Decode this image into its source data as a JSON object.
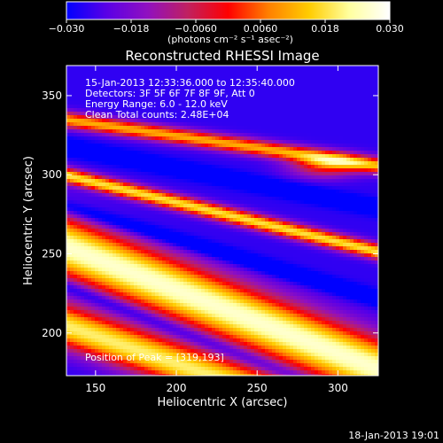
{
  "chart_data": {
    "type": "heatmap",
    "title": "Reconstructed RHESSI Image",
    "xlabel": "Heliocentric X (arcsec)",
    "ylabel": "Heliocentric Y (arcsec)",
    "xlim": [
      132,
      325
    ],
    "ylim": [
      173,
      369
    ],
    "xticks": [
      150,
      200,
      250,
      300
    ],
    "yticks": [
      200,
      250,
      300,
      350
    ],
    "colorbar": {
      "range": [
        -0.03,
        0.03
      ],
      "ticks": [
        "-0.030",
        "-0.018",
        "-0.0060",
        "0.0060",
        "0.018",
        "0.030"
      ],
      "unit_label": "(photons cm⁻² s⁻¹ asec⁻²)",
      "colors": [
        "#0000ff",
        "#5a00e6",
        "#9010c0",
        "#c02060",
        "#ff0000",
        "#ff8000",
        "#ffcc00",
        "#ffffa0",
        "#ffffff"
      ]
    },
    "annotations": [
      "15-Jan-2013 12:33:36.000 to 12:35:40.000",
      "Detectors: 3F 5F 6F 7F 8F 9F, Att 0",
      "Energy Range: 6.0 - 12.0 keV",
      "Clean     Total counts: 2.48E+04"
    ],
    "peak_label": "Position of Peak = [319,193]",
    "peak": [
      319,
      193
    ],
    "bands": [
      {
        "value": 0.026,
        "center_y_at_x130": 255,
        "slope": -0.4,
        "width": 20
      },
      {
        "value": 0.02,
        "center_y_at_x130": 205,
        "slope": -0.35,
        "width": 14
      },
      {
        "value": 0.018,
        "center_y_at_x130": 300,
        "slope": -0.25,
        "width": 5
      },
      {
        "value": 0.012,
        "center_y_at_x130": 335,
        "slope": -0.15,
        "width": 5
      }
    ],
    "secondary_source": {
      "x": 292,
      "y": 305,
      "value": 0.012
    }
  },
  "footer_timestamp": "18-Jan-2013 19:01"
}
